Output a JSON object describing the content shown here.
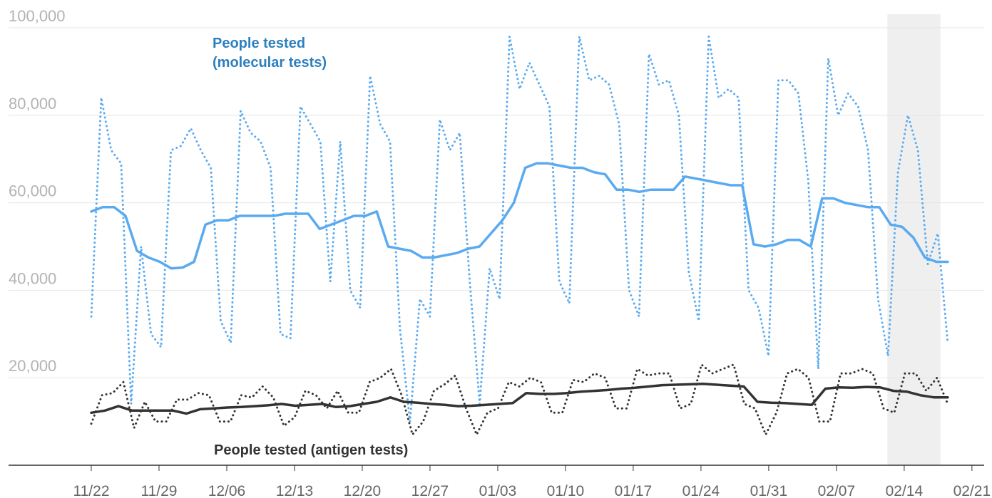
{
  "chart_data": {
    "type": "line",
    "title": "",
    "xlabel": "",
    "ylabel": "",
    "ylim": [
      0,
      100000
    ],
    "y_ticks": [
      "100,000",
      "80,000",
      "60,000",
      "40,000",
      "20,000"
    ],
    "y_tick_values": [
      100000,
      80000,
      60000,
      40000,
      20000
    ],
    "x_ticks": [
      "11/22",
      "11/29",
      "12/06",
      "12/13",
      "12/20",
      "12/27",
      "01/03",
      "01/10",
      "01/17",
      "01/24",
      "01/31",
      "02/07",
      "02/14",
      "02/21"
    ],
    "grid": true,
    "shaded_period": {
      "from_day": 83,
      "to_day": 89
    },
    "annotations": [
      {
        "text": "People tested",
        "series": "molecular"
      },
      {
        "text": "(molecular tests)",
        "series": "molecular"
      },
      {
        "text": "People tested (antigen tests)",
        "series": "antigen"
      }
    ],
    "colors": {
      "molecular": "#5aaaf0",
      "antigen": "#333333",
      "grid": "#e6e6e6",
      "shade": "#efefef"
    },
    "series": [
      {
        "key": "molecular_daily",
        "style": "dotted",
        "color": "#5aaaf0",
        "values": [
          34000,
          84000,
          72000,
          69000,
          14000,
          50000,
          30000,
          27000,
          72000,
          73000,
          77000,
          72000,
          68000,
          33000,
          28000,
          81000,
          76000,
          74000,
          68000,
          30000,
          29000,
          82000,
          78000,
          74000,
          42000,
          74000,
          40000,
          36000,
          89000,
          78000,
          74000,
          31000,
          10000,
          38000,
          34000,
          79000,
          72000,
          76000,
          42000,
          14000,
          45000,
          38000,
          98000,
          86000,
          92000,
          87000,
          82000,
          42000,
          37000,
          98000,
          88000,
          89000,
          87000,
          78000,
          40000,
          34000,
          94000,
          87000,
          88000,
          80000,
          44000,
          33000,
          98000,
          84000,
          86000,
          84000,
          40000,
          36000,
          25000,
          88000,
          88000,
          85000,
          65000,
          22000,
          93000,
          80000,
          85000,
          82000,
          72000,
          38000,
          25000,
          67000,
          80000,
          72000,
          46000,
          53000,
          28000
        ]
      },
      {
        "key": "molecular_avg",
        "style": "solid",
        "color": "#5aaaf0",
        "values": [
          58000,
          59000,
          59000,
          57000,
          49000,
          47500,
          46500,
          45000,
          45200,
          46500,
          55000,
          56000,
          56000,
          57000,
          57000,
          57000,
          57000,
          57500,
          57500,
          57500,
          54000,
          55000,
          56000,
          57000,
          57000,
          58000,
          50000,
          49500,
          49000,
          47500,
          47500,
          48000,
          48500,
          49500,
          50000,
          53000,
          56000,
          60000,
          68000,
          69000,
          69000,
          68500,
          68000,
          68000,
          67000,
          66500,
          63000,
          63000,
          62500,
          63000,
          63000,
          63000,
          66000,
          65500,
          65000,
          64500,
          64000,
          64000,
          50500,
          50000,
          50500,
          51500,
          51500,
          50000,
          61000,
          61000,
          60000,
          59500,
          59000,
          59000,
          55000,
          54500,
          52000,
          47500,
          46500,
          46500
        ]
      },
      {
        "key": "antigen_daily",
        "style": "dotted",
        "color": "#333333",
        "values": [
          9500,
          16000,
          16500,
          19000,
          8500,
          14500,
          10000,
          10000,
          15000,
          15000,
          16500,
          16000,
          10000,
          10000,
          16000,
          15500,
          18000,
          15500,
          9000,
          11000,
          17000,
          16000,
          13000,
          17000,
          12000,
          12000,
          19000,
          20000,
          22000,
          16000,
          7000,
          10000,
          17000,
          18500,
          20500,
          13000,
          7000,
          12000,
          13000,
          19000,
          18000,
          20000,
          19000,
          12000,
          12000,
          19500,
          19000,
          21000,
          20000,
          13000,
          13000,
          22000,
          20500,
          21000,
          21000,
          13000,
          14000,
          23000,
          21000,
          22000,
          23000,
          14000,
          13000,
          7000,
          12000,
          21000,
          22000,
          20000,
          10000,
          10000,
          21000,
          21000,
          22000,
          21000,
          13000,
          12000,
          21000,
          21000,
          17000,
          20000,
          14000
        ]
      },
      {
        "key": "antigen_avg",
        "style": "solid",
        "color": "#333333",
        "values": [
          12000,
          12500,
          13500,
          12500,
          12500,
          12500,
          12500,
          11800,
          12800,
          13000,
          13200,
          13300,
          13500,
          13700,
          14000,
          13600,
          13800,
          14000,
          13300,
          13500,
          14000,
          14500,
          15500,
          14500,
          14300,
          14000,
          13800,
          13500,
          13600,
          13800,
          14000,
          14200,
          16500,
          16300,
          16300,
          16500,
          16800,
          17000,
          17200,
          17500,
          17700,
          18000,
          18300,
          18400,
          18500,
          18600,
          18400,
          18200,
          18000,
          14500,
          14300,
          14200,
          14000,
          13800,
          17500,
          17800,
          17700,
          17900,
          17800,
          17000,
          16800,
          16000,
          15500,
          15500
        ]
      }
    ]
  }
}
